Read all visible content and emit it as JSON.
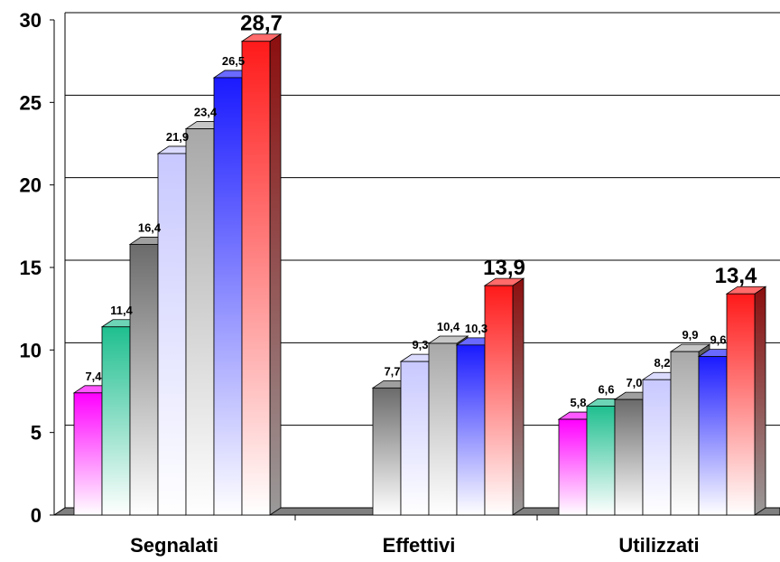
{
  "chart_data": {
    "type": "bar",
    "style": "3d-clustered",
    "categories": [
      "Segnalati",
      "Effettivi",
      "Utilizzati"
    ],
    "ylim": [
      0,
      30
    ],
    "yticks": [
      0,
      5,
      10,
      15,
      20,
      25,
      30
    ],
    "grid": true,
    "legend": "none",
    "series": [
      {
        "color": "#ff00ff",
        "values": [
          7.4,
          null,
          5.8
        ]
      },
      {
        "color": "#1fbf8f",
        "values": [
          11.4,
          null,
          6.6
        ]
      },
      {
        "color": "#6b6b6b",
        "values": [
          16.4,
          7.7,
          7.0
        ]
      },
      {
        "color": "#c8c8ff",
        "values": [
          21.9,
          9.3,
          8.2
        ]
      },
      {
        "color": "#a8a8a8",
        "values": [
          23.4,
          10.4,
          9.9
        ]
      },
      {
        "color": "#1a1aff",
        "values": [
          26.5,
          10.3,
          9.6
        ]
      },
      {
        "color": "#ff1a1a",
        "values": [
          28.7,
          13.9,
          13.4
        ]
      }
    ],
    "data_labels": [
      [
        "7,4",
        "",
        "5,8"
      ],
      [
        "11,4",
        "",
        "6,6"
      ],
      [
        "16,4",
        "7,7",
        "7,0"
      ],
      [
        "21,9",
        "9,3",
        "8,2"
      ],
      [
        "23,4",
        "10,4",
        "9,9"
      ],
      [
        "26,5",
        "10,3",
        "9,6"
      ],
      [
        "28,7",
        "13,9",
        "13,4"
      ]
    ],
    "xlabel": "",
    "ylabel": "",
    "title": ""
  }
}
